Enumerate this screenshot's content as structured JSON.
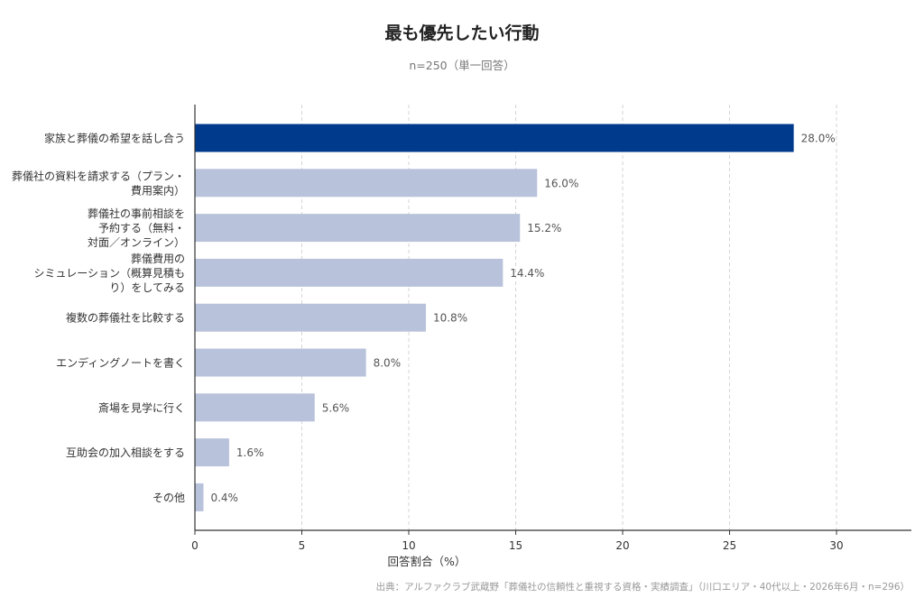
{
  "chart_data": {
    "type": "bar",
    "orientation": "horizontal",
    "title": "最も優先したい行動",
    "subtitle": "n=250（単一回答）",
    "xlabel": "回答割合（%）",
    "ylabel": "",
    "xlim": [
      0,
      33.5
    ],
    "xticks": [
      0,
      5,
      10,
      15,
      20,
      25,
      30
    ],
    "grid": "vertical-dashed",
    "categories": [
      [
        "家族と葬儀の希望を話し合う"
      ],
      [
        "葬儀社の資料を請求する（プラン・",
        "費用案内）"
      ],
      [
        "葬儀社の事前相談を",
        "予約する（無料・",
        "対面／オンライン）"
      ],
      [
        "葬儀費用の",
        "シミュレーション（概算見積も",
        "り）をしてみる"
      ],
      [
        "複数の葬儀社を比較する"
      ],
      [
        "エンディングノートを書く"
      ],
      [
        "斎場を見学に行く"
      ],
      [
        "互助会の加入相談をする"
      ],
      [
        "その他"
      ]
    ],
    "values": [
      28.0,
      16.0,
      15.2,
      14.4,
      10.8,
      8.0,
      5.6,
      1.6,
      0.4
    ],
    "value_labels": [
      "28.0%",
      "16.0%",
      "15.2%",
      "14.4%",
      "10.8%",
      "8.0%",
      "5.6%",
      "1.6%",
      "0.4%"
    ],
    "colors": {
      "highlight": "#003a8c",
      "default": "#b8c2db",
      "grid": "#d4d4d4",
      "axis": "#333333"
    }
  },
  "source": "出典：アルファクラブ武蔵野「葬儀社の信頼性と重視する資格・実績調査」（川口エリア・40代以上・2026年6月・n=296）"
}
